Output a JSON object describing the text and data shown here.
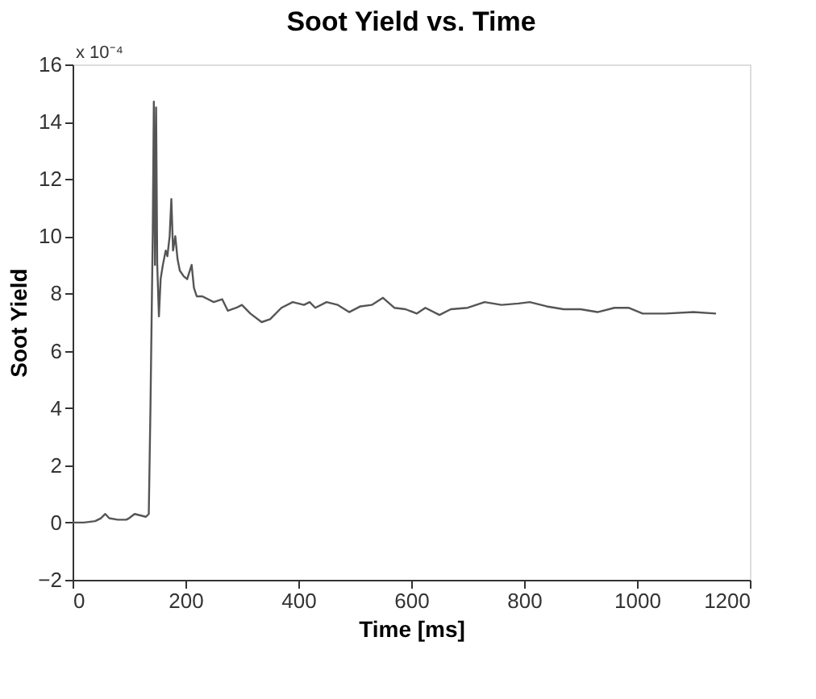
{
  "chart_data": {
    "type": "line",
    "title": "Soot Yield vs. Time",
    "xlabel": "Time [ms]",
    "ylabel": "Soot Yield",
    "annotations": [
      "x 10⁻⁴"
    ],
    "x": [
      0,
      20,
      40,
      50,
      58,
      65,
      80,
      95,
      100,
      110,
      120,
      130,
      135,
      138,
      142,
      144,
      146,
      148,
      150,
      153,
      156,
      160,
      165,
      168,
      172,
      175,
      178,
      182,
      186,
      190,
      197,
      203,
      211,
      215,
      220,
      230,
      250,
      265,
      275,
      290,
      300,
      315,
      335,
      350,
      370,
      390,
      410,
      420,
      430,
      450,
      470,
      490,
      510,
      530,
      550,
      570,
      590,
      610,
      625,
      650,
      670,
      700,
      730,
      760,
      790,
      810,
      840,
      870,
      900,
      930,
      960,
      985,
      1010,
      1050,
      1100,
      1140
    ],
    "series": [
      {
        "color": "#555555",
        "values": [
          0,
          0,
          0.05,
          0.15,
          0.3,
          0.15,
          0.1,
          0.1,
          0.15,
          0.3,
          0.25,
          0.2,
          0.3,
          4,
          10,
          14.7,
          9,
          14.5,
          9,
          7.2,
          8.5,
          9.0,
          9.5,
          9.3,
          10.0,
          11.3,
          9.5,
          10.0,
          9.2,
          8.8,
          8.6,
          8.5,
          9.0,
          8.2,
          7.9,
          7.9,
          7.7,
          7.8,
          7.4,
          7.5,
          7.6,
          7.3,
          7.0,
          7.1,
          7.5,
          7.7,
          7.6,
          7.7,
          7.5,
          7.7,
          7.6,
          7.35,
          7.55,
          7.6,
          7.85,
          7.5,
          7.45,
          7.3,
          7.5,
          7.25,
          7.45,
          7.5,
          7.7,
          7.6,
          7.65,
          7.7,
          7.55,
          7.45,
          7.45,
          7.35,
          7.5,
          7.5,
          7.3,
          7.3,
          7.35,
          7.3
        ]
      }
    ],
    "xlim": [
      0,
      1200
    ],
    "xticks": [
      0,
      200,
      400,
      600,
      800,
      1000,
      1200
    ],
    "ylim": [
      -2,
      16
    ],
    "yticks": [
      -2,
      0,
      2,
      4,
      6,
      8,
      10,
      12,
      14,
      16
    ],
    "grid": false,
    "marker": "none",
    "line_style": "solid"
  }
}
